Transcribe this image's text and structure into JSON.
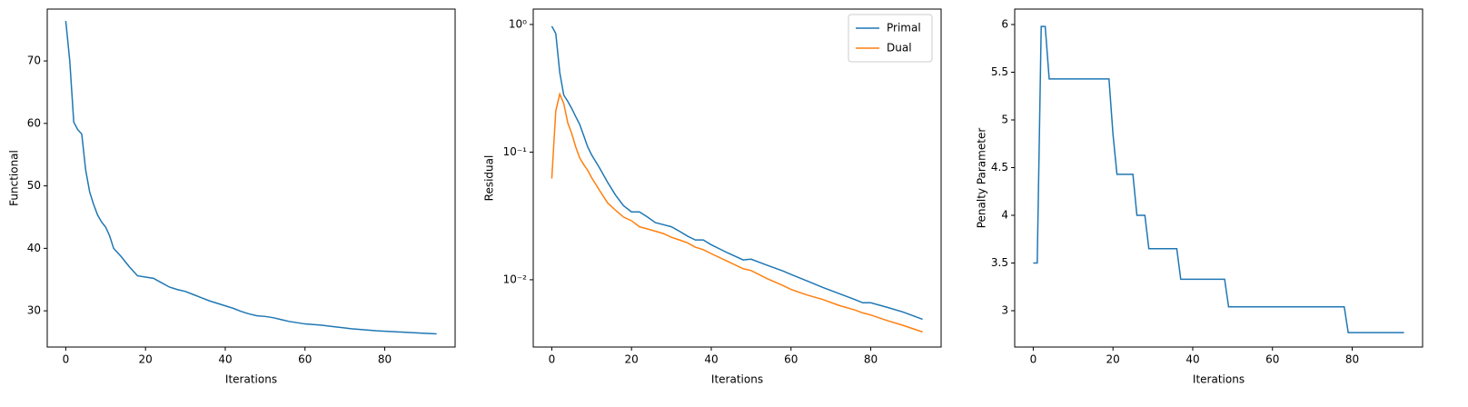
{
  "chart_data": [
    {
      "type": "line",
      "xlabel": "Iterations",
      "ylabel": "Functional",
      "color": "#1f77b4",
      "x": [
        0,
        1,
        2,
        3,
        4,
        5,
        6,
        7,
        8,
        9,
        10,
        11,
        12,
        13,
        14,
        15,
        16,
        17,
        18,
        20,
        22,
        24,
        26,
        28,
        30,
        32,
        34,
        36,
        38,
        40,
        42,
        44,
        46,
        48,
        50,
        52,
        54,
        56,
        58,
        60,
        64,
        68,
        72,
        78,
        84,
        90,
        93
      ],
      "values": [
        76.4,
        70,
        60.2,
        59,
        58.3,
        52.5,
        49,
        47,
        45.3,
        44.2,
        43.4,
        42,
        40,
        39.3,
        38.6,
        37.8,
        37,
        36.3,
        35.6,
        35.4,
        35.2,
        34.5,
        33.8,
        33.4,
        33.1,
        32.6,
        32.1,
        31.6,
        31.2,
        30.8,
        30.4,
        29.9,
        29.5,
        29.2,
        29.1,
        28.9,
        28.6,
        28.3,
        28.1,
        27.9,
        27.7,
        27.4,
        27.1,
        26.8,
        26.6,
        26.4,
        26.3
      ],
      "xlim": [
        -4.65,
        97.65
      ],
      "xticks": [
        0,
        20,
        40,
        60,
        80
      ],
      "ylim": [
        24.2,
        78.3
      ],
      "yticks": [
        30,
        40,
        50,
        60,
        70
      ]
    },
    {
      "type": "line",
      "xlabel": "Iterations",
      "ylabel": "Residual",
      "yscale": "log",
      "legend": "upper right",
      "x": [
        0,
        1,
        2,
        3,
        4,
        5,
        6,
        7,
        8,
        9,
        10,
        12,
        14,
        16,
        18,
        20,
        22,
        24,
        26,
        28,
        30,
        32,
        34,
        36,
        38,
        40,
        44,
        48,
        50,
        54,
        58,
        60,
        64,
        68,
        72,
        76,
        78,
        80,
        84,
        88,
        93
      ],
      "series": [
        {
          "name": "Primal",
          "color": "#1f77b4",
          "values": [
            0.97,
            0.85,
            0.42,
            0.28,
            0.25,
            0.22,
            0.19,
            0.165,
            0.135,
            0.11,
            0.095,
            0.075,
            0.058,
            0.046,
            0.038,
            0.034,
            0.034,
            0.031,
            0.028,
            0.027,
            0.026,
            0.024,
            0.022,
            0.0205,
            0.0205,
            0.0188,
            0.0163,
            0.0143,
            0.0145,
            0.013,
            0.0117,
            0.011,
            0.0098,
            0.0087,
            0.0078,
            0.007,
            0.0066,
            0.0066,
            0.0061,
            0.0056,
            0.0049
          ]
        },
        {
          "name": "Dual",
          "color": "#ff7f0e",
          "values": [
            0.062,
            0.21,
            0.285,
            0.24,
            0.17,
            0.14,
            0.11,
            0.09,
            0.08,
            0.072,
            0.063,
            0.05,
            0.04,
            0.035,
            0.031,
            0.029,
            0.026,
            0.025,
            0.024,
            0.023,
            0.0215,
            0.0205,
            0.0195,
            0.018,
            0.0172,
            0.016,
            0.014,
            0.0122,
            0.0118,
            0.0102,
            0.009,
            0.0084,
            0.0076,
            0.007,
            0.0063,
            0.0058,
            0.0055,
            0.0053,
            0.0048,
            0.0044,
            0.0039
          ]
        }
      ],
      "xlim": [
        -4.65,
        97.65
      ],
      "xticks": [
        0,
        20,
        40,
        60,
        80
      ],
      "ylim": [
        0.00297,
        1.32
      ],
      "yticks": [
        {
          "value": 0.01,
          "label": "10⁻²"
        },
        {
          "value": 0.1,
          "label": "10⁻¹"
        },
        {
          "value": 1,
          "label": "10⁰"
        }
      ]
    },
    {
      "type": "line",
      "xlabel": "Iterations",
      "ylabel": "Penalty Parameter",
      "color": "#1f77b4",
      "x": [
        0,
        1,
        2,
        3,
        4,
        19,
        20,
        21,
        25,
        26,
        28,
        29,
        36,
        37,
        48,
        49,
        78,
        79,
        93
      ],
      "values": [
        3.5,
        3.5,
        5.98,
        5.98,
        5.43,
        5.43,
        4.85,
        4.43,
        4.43,
        4.0,
        4.0,
        3.65,
        3.65,
        3.33,
        3.33,
        3.04,
        3.04,
        2.77,
        2.77
      ],
      "xlim": [
        -4.65,
        97.65
      ],
      "xticks": [
        0,
        20,
        40,
        60,
        80
      ],
      "ylim": [
        2.619,
        6.162
      ],
      "yticks": [
        3.0,
        3.5,
        4.0,
        4.5,
        5.0,
        5.5,
        6.0
      ]
    }
  ]
}
